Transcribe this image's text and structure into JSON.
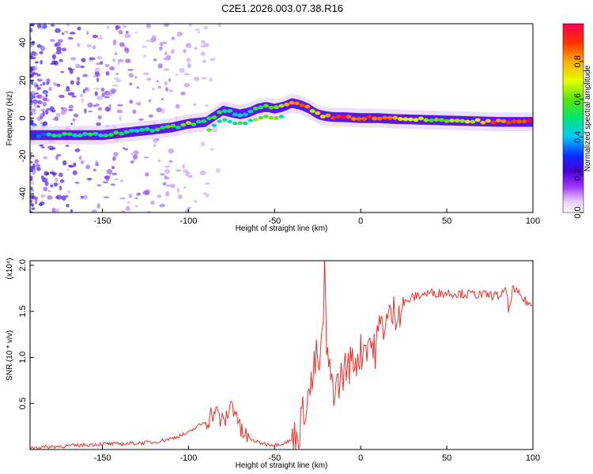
{
  "title": "C2E1.2026.003.07.38.R16",
  "colors": {
    "line": "#e8332b",
    "axis": "#000000",
    "tick": "#000000"
  },
  "chart_data": [
    {
      "type": "heatmap",
      "name": "spectrogram",
      "xlabel": "Height of straight line (km)",
      "ylabel": "Frequency (Hz)",
      "xlim": [
        -192,
        100
      ],
      "ylim": [
        -50,
        50
      ],
      "x_ticks": [
        -150,
        -100,
        -50,
        0,
        50,
        100
      ],
      "y_ticks": [
        -40,
        -20,
        0,
        20,
        40
      ],
      "ridge": {
        "x": [
          -192,
          -175,
          -160,
          -150,
          -140,
          -130,
          -120,
          -110,
          -100,
          -90,
          -85,
          -80,
          -75,
          -70,
          -65,
          -60,
          -55,
          -50,
          -45,
          -40,
          -35,
          -30,
          -25,
          -20,
          -15,
          -10,
          0,
          10,
          20,
          40,
          60,
          80,
          100
        ],
        "freq": [
          -9,
          -9,
          -9,
          -9,
          -8,
          -7,
          -6,
          -5,
          -3,
          -2,
          1,
          4,
          3,
          2,
          3,
          5,
          6,
          5,
          6,
          8,
          7,
          5,
          2,
          1,
          0.5,
          0.5,
          0,
          0,
          -0.5,
          -1,
          -1.5,
          -2,
          -2
        ],
        "amplitude": [
          0.3,
          0.5,
          0.55,
          0.5,
          0.55,
          0.5,
          0.5,
          0.55,
          0.6,
          0.55,
          0.6,
          0.55,
          0.5,
          0.45,
          0.5,
          0.55,
          0.6,
          0.65,
          0.75,
          0.9,
          0.85,
          0.75,
          0.8,
          0.85,
          0.9,
          0.95,
          0.9,
          0.9,
          0.85,
          0.6,
          0.65,
          0.9,
          0.95
        ]
      },
      "colorbar": {
        "label": "Normalized spectral amplitude",
        "range": [
          0,
          1
        ],
        "ticks": [
          0.0,
          0.2,
          0.4,
          0.6,
          0.8
        ],
        "tick_labels": [
          "0.0",
          "0.2",
          "0.4",
          "0.6",
          "0.8"
        ]
      }
    },
    {
      "type": "line",
      "name": "snr",
      "xlabel": "Height of straight line (km)",
      "ylabel": "SNR (10 * v/v)",
      "y_multiplier": "(x10⁴)",
      "xlim": [
        -192,
        100
      ],
      "ylim": [
        0,
        2.05
      ],
      "x_ticks": [
        -150,
        -100,
        -50,
        0,
        50,
        100
      ],
      "y_ticks": [
        0.5,
        1.0,
        1.5,
        2.0
      ],
      "y_tick_labels": [
        "0.5",
        "1.0",
        "1.5",
        "2.0"
      ],
      "series": [
        {
          "name": "SNR",
          "x": [
            -192,
            -180,
            -170,
            -160,
            -150,
            -140,
            -130,
            -120,
            -115,
            -110,
            -105,
            -100,
            -95,
            -90,
            -85,
            -82,
            -80,
            -78,
            -75,
            -72,
            -70,
            -65,
            -60,
            -55,
            -50,
            -45,
            -40,
            -37,
            -35,
            -33,
            -30,
            -28,
            -26,
            -24,
            -22,
            -21,
            -20,
            -18,
            -15,
            -12,
            -10,
            -8,
            -5,
            -2,
            0,
            3,
            5,
            8,
            10,
            12,
            15,
            18,
            20,
            25,
            28,
            30,
            35,
            40,
            50,
            60,
            70,
            80,
            85,
            86,
            88,
            92,
            95,
            100
          ],
          "y": [
            0.02,
            0.03,
            0.04,
            0.05,
            0.06,
            0.06,
            0.07,
            0.08,
            0.1,
            0.12,
            0.15,
            0.18,
            0.25,
            0.3,
            0.42,
            0.35,
            0.28,
            0.35,
            0.5,
            0.4,
            0.2,
            0.12,
            0.08,
            0.06,
            0.05,
            0.07,
            0.1,
            0.15,
            0.25,
            0.45,
            0.6,
            0.75,
            1.0,
            0.9,
            1.2,
            2.05,
            1.1,
            0.8,
            0.65,
            0.75,
            0.85,
            0.9,
            0.95,
            1.0,
            1.05,
            1.15,
            1.2,
            1.05,
            1.25,
            1.35,
            1.4,
            1.45,
            1.5,
            1.58,
            1.62,
            1.65,
            1.68,
            1.7,
            1.7,
            1.69,
            1.68,
            1.67,
            1.72,
            1.45,
            1.75,
            1.68,
            1.62,
            1.55
          ]
        }
      ]
    }
  ]
}
